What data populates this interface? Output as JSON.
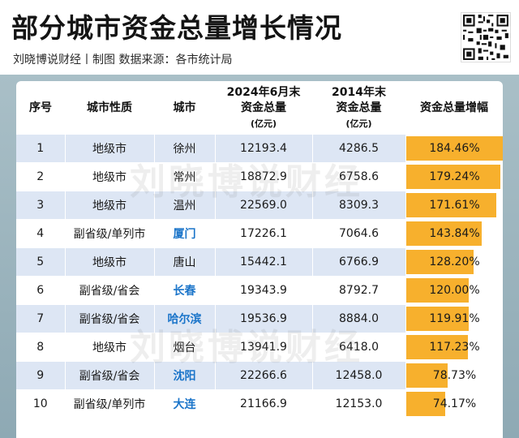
{
  "header": {
    "title": "部分城市资金总量增长情况",
    "subtitle": "刘晓博说财经丨制图  数据来源：各市统计局"
  },
  "watermark": "刘晓博说财经",
  "columns": {
    "index": "序号",
    "type": "城市性质",
    "city": "城市",
    "val2024_line1": "2024年6月末",
    "val2024_line2": "资金总量",
    "val2024_unit": "(亿元)",
    "val2014_line1": "2014年末",
    "val2014_line2": "资金总量",
    "val2014_unit": "(亿元)",
    "growth": "资金总量增幅"
  },
  "colors": {
    "bar": "#f7b02d",
    "highlight_city": "#1a74c9",
    "row_stripe": "#dde6f4",
    "panel": "#9db4bd"
  },
  "chart_data": {
    "type": "table",
    "title": "部分城市资金总量增长情况",
    "rows": [
      {
        "idx": "1",
        "type": "地级市",
        "city": "徐州",
        "highlight": false,
        "v2024": "12193.4",
        "v2014": "4286.5",
        "growth": "184.46%",
        "growth_value": 184.46
      },
      {
        "idx": "2",
        "type": "地级市",
        "city": "常州",
        "highlight": false,
        "v2024": "18872.9",
        "v2014": "6758.6",
        "growth": "179.24%",
        "growth_value": 179.24
      },
      {
        "idx": "3",
        "type": "地级市",
        "city": "温州",
        "highlight": false,
        "v2024": "22569.0",
        "v2014": "8309.3",
        "growth": "171.61%",
        "growth_value": 171.61
      },
      {
        "idx": "4",
        "type": "副省级/单列市",
        "city": "厦门",
        "highlight": true,
        "v2024": "17226.1",
        "v2014": "7064.6",
        "growth": "143.84%",
        "growth_value": 143.84
      },
      {
        "idx": "5",
        "type": "地级市",
        "city": "唐山",
        "highlight": false,
        "v2024": "15442.1",
        "v2014": "6766.9",
        "growth": "128.20%",
        "growth_value": 128.2
      },
      {
        "idx": "6",
        "type": "副省级/省会",
        "city": "长春",
        "highlight": true,
        "v2024": "19343.9",
        "v2014": "8792.7",
        "growth": "120.00%",
        "growth_value": 120.0
      },
      {
        "idx": "7",
        "type": "副省级/省会",
        "city": "哈尔滨",
        "highlight": true,
        "v2024": "19536.9",
        "v2014": "8884.0",
        "growth": "119.91%",
        "growth_value": 119.91
      },
      {
        "idx": "8",
        "type": "地级市",
        "city": "烟台",
        "highlight": false,
        "v2024": "13941.9",
        "v2014": "6418.0",
        "growth": "117.23%",
        "growth_value": 117.23
      },
      {
        "idx": "9",
        "type": "副省级/省会",
        "city": "沈阳",
        "highlight": true,
        "v2024": "22266.6",
        "v2014": "12458.0",
        "growth": "78.73%",
        "growth_value": 78.73
      },
      {
        "idx": "10",
        "type": "副省级/单列市",
        "city": "大连",
        "highlight": true,
        "v2024": "21166.9",
        "v2014": "12153.0",
        "growth": "74.17%",
        "growth_value": 74.17
      }
    ]
  }
}
